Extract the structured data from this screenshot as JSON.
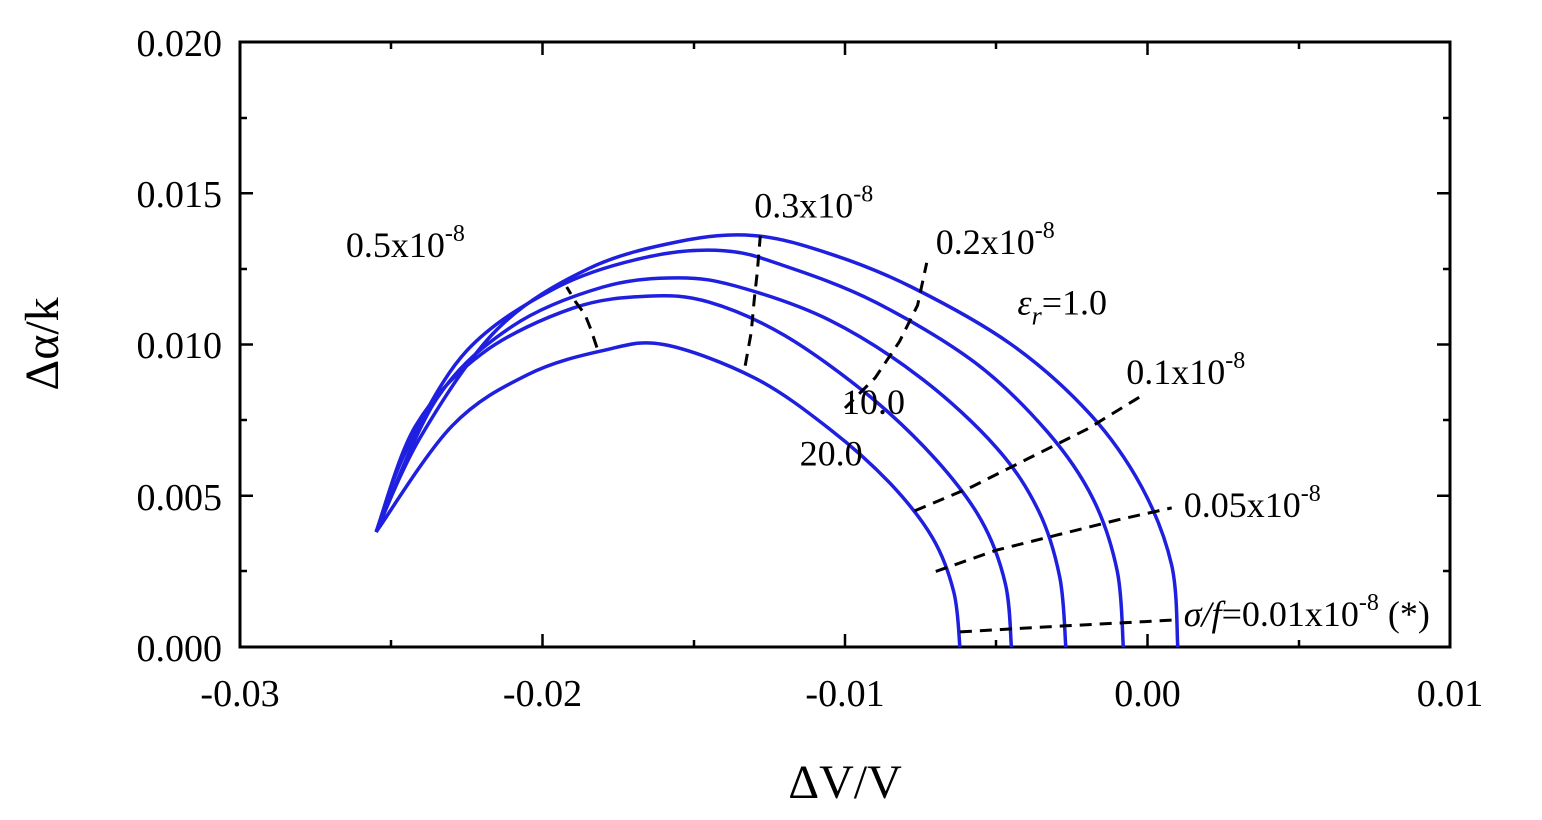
{
  "chart_data": {
    "type": "line",
    "xlabel": "ΔV/V",
    "ylabel": "Δα/k",
    "xlim": [
      -0.03,
      0.01
    ],
    "ylim": [
      0.0,
      0.02
    ],
    "xticks": [
      "-0.03",
      "-0.02",
      "-0.01",
      "0.00",
      "0.01"
    ],
    "yticks": [
      "0.000",
      "0.005",
      "0.010",
      "0.015",
      "0.020"
    ],
    "grid": false,
    "series": [
      {
        "role": "er-curve",
        "color": "#1f1fe0",
        "points": [
          [
            0.001,
            0
          ],
          [
            0.0008,
            0.0027
          ],
          [
            -0.0002,
            0.0053
          ],
          [
            -0.0019,
            0.0077
          ],
          [
            -0.0045,
            0.01
          ],
          [
            -0.0078,
            0.0119
          ],
          [
            -0.0105,
            0.013
          ],
          [
            -0.013,
            0.0136
          ],
          [
            -0.0155,
            0.0134
          ],
          [
            -0.0185,
            0.0125
          ],
          [
            -0.0215,
            0.0105
          ],
          [
            -0.024,
            0.007
          ],
          [
            -0.0255,
            0.0038
          ]
        ]
      },
      {
        "role": "er-curve",
        "color": "#1f1fe0",
        "points": [
          [
            -0.0008,
            0
          ],
          [
            -0.001,
            0.0025
          ],
          [
            -0.0018,
            0.0049
          ],
          [
            -0.0033,
            0.0071
          ],
          [
            -0.0057,
            0.0094
          ],
          [
            -0.009,
            0.0114
          ],
          [
            -0.012,
            0.0126
          ],
          [
            -0.014,
            0.0131
          ],
          [
            -0.0165,
            0.0129
          ],
          [
            -0.0195,
            0.0119
          ],
          [
            -0.0225,
            0.0098
          ],
          [
            -0.0245,
            0.0065
          ],
          [
            -0.0255,
            0.0038
          ]
        ]
      },
      {
        "role": "er-curve",
        "color": "#1f1fe0",
        "points": [
          [
            -0.0027,
            0
          ],
          [
            -0.0029,
            0.0023
          ],
          [
            -0.0036,
            0.0045
          ],
          [
            -0.005,
            0.0066
          ],
          [
            -0.0075,
            0.0089
          ],
          [
            -0.0105,
            0.0108
          ],
          [
            -0.0135,
            0.0119
          ],
          [
            -0.0155,
            0.0122
          ],
          [
            -0.018,
            0.0119
          ],
          [
            -0.021,
            0.0106
          ],
          [
            -0.0235,
            0.0082
          ],
          [
            -0.0255,
            0.0038
          ]
        ]
      },
      {
        "role": "er-curve",
        "color": "#1f1fe0",
        "points": [
          [
            -0.0045,
            0
          ],
          [
            -0.0047,
            0.0021
          ],
          [
            -0.0055,
            0.0042
          ],
          [
            -0.007,
            0.0062
          ],
          [
            -0.0092,
            0.0083
          ],
          [
            -0.012,
            0.0103
          ],
          [
            -0.0145,
            0.0114
          ],
          [
            -0.0165,
            0.0116
          ],
          [
            -0.019,
            0.0112
          ],
          [
            -0.022,
            0.0097
          ],
          [
            -0.0242,
            0.0073
          ],
          [
            -0.0255,
            0.0038
          ]
        ]
      },
      {
        "role": "er-curve",
        "color": "#1f1fe0",
        "points": [
          [
            -0.0062,
            0
          ],
          [
            -0.0064,
            0.0018
          ],
          [
            -0.0071,
            0.0036
          ],
          [
            -0.0085,
            0.0054
          ],
          [
            -0.0105,
            0.0072
          ],
          [
            -0.013,
            0.0089
          ],
          [
            -0.016,
            0.01
          ],
          [
            -0.018,
            0.0098
          ],
          [
            -0.0205,
            0.009
          ],
          [
            -0.023,
            0.0073
          ],
          [
            -0.0255,
            0.0038
          ]
        ]
      },
      {
        "role": "sf-line",
        "color": "#000000",
        "points": [
          [
            -0.0062,
            0.0005
          ],
          [
            -0.0045,
            0.0006
          ],
          [
            -0.0027,
            0.0007
          ],
          [
            -0.0008,
            0.0008
          ],
          [
            0.001,
            0.0009
          ]
        ]
      },
      {
        "role": "sf-line",
        "color": "#000000",
        "points": [
          [
            -0.007,
            0.0025
          ],
          [
            -0.005,
            0.0032
          ],
          [
            -0.003,
            0.0037
          ],
          [
            -0.001,
            0.0042
          ],
          [
            0.0008,
            0.0046
          ]
        ]
      },
      {
        "role": "sf-line",
        "color": "#000000",
        "points": [
          [
            -0.0077,
            0.0045
          ],
          [
            -0.0058,
            0.0053
          ],
          [
            -0.004,
            0.0062
          ],
          [
            -0.002,
            0.0072
          ],
          [
            -0.0002,
            0.0083
          ]
        ]
      },
      {
        "role": "sf-line",
        "color": "#000000",
        "points": [
          [
            -0.01,
            0.0079
          ],
          [
            -0.009,
            0.0089
          ],
          [
            -0.0082,
            0.0101
          ],
          [
            -0.0076,
            0.0113
          ],
          [
            -0.0073,
            0.0127
          ]
        ]
      },
      {
        "role": "sf-line",
        "color": "#000000",
        "points": [
          [
            -0.0133,
            0.0093
          ],
          [
            -0.0131,
            0.0104
          ],
          [
            -0.013,
            0.0115
          ],
          [
            -0.0129,
            0.0124
          ],
          [
            -0.0128,
            0.0136
          ]
        ]
      },
      {
        "role": "sf-line",
        "color": "#000000",
        "points": [
          [
            -0.0182,
            0.0099
          ],
          [
            -0.0184,
            0.0105
          ],
          [
            -0.0186,
            0.011
          ],
          [
            -0.0189,
            0.0114
          ],
          [
            -0.0192,
            0.0119
          ]
        ]
      }
    ],
    "annotations": {
      "a03": {
        "base": "0.3x10",
        "exp": "-8",
        "x": -0.013,
        "y": 0.0142
      },
      "a05": {
        "base": "0.5x10",
        "exp": "-8",
        "x": -0.0265,
        "y": 0.0129
      },
      "a02": {
        "base": "0.2x10",
        "exp": "-8",
        "x": -0.007,
        "y": 0.013
      },
      "aer": {
        "sym": "ε",
        "sub": "r",
        "rest": "=1.0",
        "x": -0.0043,
        "y": 0.011
      },
      "a01": {
        "base": "0.1x10",
        "exp": "-8",
        "x": -0.0007,
        "y": 0.0087
      },
      "a10": {
        "text": "10.0",
        "x": -0.0101,
        "y": 0.0077
      },
      "a20": {
        "text": "20.0",
        "x": -0.0115,
        "y": 0.006
      },
      "a005": {
        "base": "0.05x10",
        "exp": "-8",
        "x": 0.0012,
        "y": 0.0043
      },
      "asf": {
        "sym": "σ/f",
        "base": "=0.01x10",
        "exp": "-8",
        "tail": " (*)",
        "x": 0.0012,
        "y": 0.0007
      }
    }
  }
}
